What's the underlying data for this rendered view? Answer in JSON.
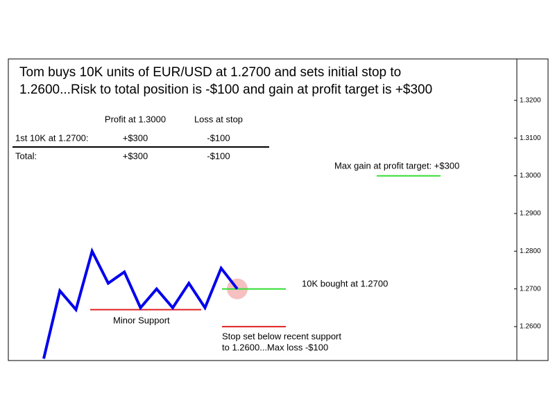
{
  "chart_data": {
    "type": "line",
    "title": [
      "Tom buys 10K units of EUR/USD at 1.2700 and sets initial stop to",
      "1.2600...Risk to total position is -$100 and gain at profit target is +$300"
    ],
    "categories": [
      null,
      null,
      null,
      null,
      null,
      null,
      null,
      null,
      null,
      null,
      null,
      null,
      null
    ],
    "series": [
      {
        "color": "#0000ee",
        "values": [
          1.2515,
          1.2695,
          1.2645,
          1.28,
          1.2715,
          1.2745,
          1.265,
          1.27,
          1.265,
          1.2715,
          1.265,
          1.2755,
          1.27
        ]
      }
    ],
    "ylim": [
      1.251,
      1.331
    ],
    "yticks": [
      {
        "value": 1.26,
        "label": "1.2600"
      },
      {
        "value": 1.27,
        "label": "1.2700"
      },
      {
        "value": 1.28,
        "label": "1.2800"
      },
      {
        "value": 1.29,
        "label": "1.2900"
      },
      {
        "value": 1.3,
        "label": "1.3000"
      },
      {
        "value": 1.31,
        "label": "1.3100"
      },
      {
        "value": 1.32,
        "label": "1.3200"
      }
    ],
    "levels": [
      {
        "value": 1.3,
        "color": "#33dd33"
      },
      {
        "value": 1.27,
        "color": "#33dd33"
      },
      {
        "value": 1.26,
        "color": "#e02020"
      },
      {
        "value": 1.2645,
        "color": "#e02020"
      }
    ],
    "annotations": [
      [
        "Max gain at profit target: +$300"
      ],
      [
        "10K bought at 1.2700"
      ],
      [
        "Stop set below recent support",
        "to 1.2600...Max loss -$100"
      ],
      [
        "Minor Support"
      ]
    ],
    "table": {
      "columns": [
        "Profit at 1.3000",
        "Loss at stop"
      ],
      "rows": [
        [
          "1st 10K at 1.2700:",
          "+$300",
          "-$100"
        ],
        [
          "Total:",
          "+$300",
          "-$100"
        ]
      ]
    }
  }
}
